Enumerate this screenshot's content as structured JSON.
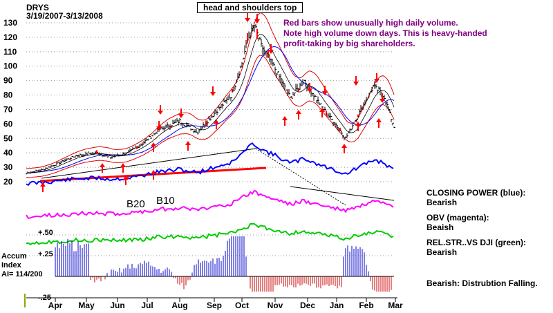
{
  "header": {
    "ticker": "DRYS",
    "date_range": "3/19/2007-3/13/2008",
    "pattern_box": "head and shoulders top"
  },
  "note_lines": [
    "Red bars show unusually high daily volume.",
    "Note high volume down days.  This is heavy-handed",
    "profit-taking by big shareholders."
  ],
  "signals": {
    "b20": "B20",
    "b10": "B10"
  },
  "accum": {
    "title_line1": "Accum",
    "title_line2": "Index",
    "ai_label": "AI= 114/200",
    "tick_pos_50": "+.50",
    "tick_pos_25": "+.25",
    "tick_neg_25": "-.25"
  },
  "side_panel": [
    {
      "title": "CLOSING POWER (blue):",
      "value": "Bearish"
    },
    {
      "title": "OBV (magenta):",
      "value": "Beaish"
    },
    {
      "title": "REL.STR..VS DJI (green):",
      "value": "Bearish"
    }
  ],
  "bottom_note": "Bearish: Distrubtion Falling.",
  "colors": {
    "price_bars": "#000000",
    "closing_power": "#0000ff",
    "obv": "#ff00ff",
    "rel_strength": "#00cc00",
    "bands": "#dd0000",
    "trendline": "#ff0000",
    "accum_pos": "#0000cc",
    "accum_neg": "#cc0000",
    "notes": "#800080"
  },
  "chart_data": {
    "type": "line",
    "title": "DRYS",
    "subtitle": "3/19/2007-3/13/2008",
    "x_tick_labels": [
      "Apr",
      "May",
      "Jun",
      "Jul",
      "Aug",
      "Sep",
      "Oct",
      "Nov",
      "Dec",
      "Jan",
      "Feb",
      "Mar"
    ],
    "y_tick_labels": [
      130,
      120,
      110,
      100,
      90,
      80,
      70,
      60,
      50,
      40,
      30,
      20
    ],
    "ylim": [
      20,
      135
    ],
    "grid": "horizontal dotted",
    "series": [
      {
        "name": "",
        "x": [
          "Mar 19",
          "Apr 1",
          "Apr 15",
          "May 1",
          "May 15",
          "Jun 1",
          "Jun 15",
          "Jul 1",
          "Jul 15",
          "Aug 1",
          "Aug 15",
          "Sep 1",
          "Sep 15",
          "Oct 1",
          "Oct 8",
          "Oct 15",
          "Oct 22",
          "Nov 1",
          "Nov 15",
          "Dec 1",
          "Dec 15",
          "Jan 2",
          "Jan 15",
          "Feb 1",
          "Feb 15",
          "Mar 1",
          "Mar 13"
        ],
        "values": [
          26,
          28,
          32,
          38,
          40,
          37,
          40,
          46,
          56,
          62,
          54,
          70,
          80,
          102,
          118,
          128,
          114,
          98,
          78,
          90,
          72,
          60,
          50,
          68,
          86,
          80,
          58
        ]
      }
    ]
  }
}
